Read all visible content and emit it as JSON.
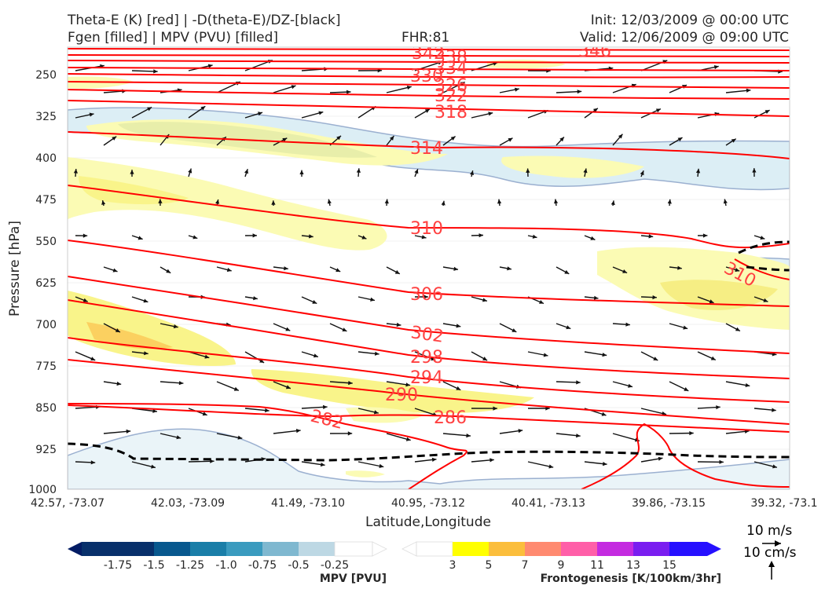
{
  "header": {
    "title_left_1": "Theta-E (K) [red] | -D(theta-E)/DZ-[black]",
    "title_left_2": "Fgen [filled] | MPV (PVU) [filled]",
    "fhr": "FHR:81",
    "init": "Init: 12/03/2009 @ 00:00 UTC",
    "valid": "Valid: 12/06/2009 @ 09:00 UTC"
  },
  "chart_data": {
    "type": "cross-section",
    "xlabel": "Latitude,Longitude",
    "ylabel": "Pressure [hPa]",
    "ylim": [
      1000,
      200
    ],
    "y_ticks": [
      250,
      325,
      400,
      475,
      550,
      625,
      700,
      775,
      850,
      925,
      1000
    ],
    "x_ticks": [
      "42.57, -73.07",
      "42.03, -73.09",
      "41.49, -73.10",
      "40.95, -73.12",
      "40.41, -73.13",
      "39.86, -73.15",
      "39.32, -73.1"
    ],
    "theta_e_contours": {
      "color": "#ff0000",
      "label_color": "#ff4040",
      "labels": [
        "342",
        "338",
        "346",
        "334",
        "330",
        "326",
        "322",
        "318",
        "314",
        "310",
        "310",
        "306",
        "302",
        "298",
        "294",
        "290",
        "286",
        "282"
      ]
    },
    "fill_regions": [
      "light-yellow",
      "yellow",
      "orange",
      "light-blue",
      "pale-blue"
    ],
    "mpv_colorbar": {
      "title": "MPV [PVU]",
      "ticks": [
        "-1.75",
        "-1.5",
        "-1.25",
        "-1.0",
        "-0.75",
        "-0.5",
        "-0.25"
      ],
      "colors": [
        "#031c64",
        "#08306b",
        "#08588e",
        "#1a7ea8",
        "#3a9bbf",
        "#7fb8d0",
        "#bdd8e4",
        "#ffffff"
      ]
    },
    "fgen_colorbar": {
      "title": "Frontogenesis [K/100km/3hr]",
      "ticks": [
        "3",
        "5",
        "7",
        "9",
        "11",
        "13",
        "15"
      ],
      "colors": [
        "#ffffff",
        "#ffff00",
        "#fbbe3c",
        "#ff8a70",
        "#ff5fa8",
        "#c42be0",
        "#7a1ef0",
        "#2610ff"
      ]
    },
    "vector_key": {
      "horizontal": "10 m/s",
      "vertical": "10 cm/s"
    }
  }
}
